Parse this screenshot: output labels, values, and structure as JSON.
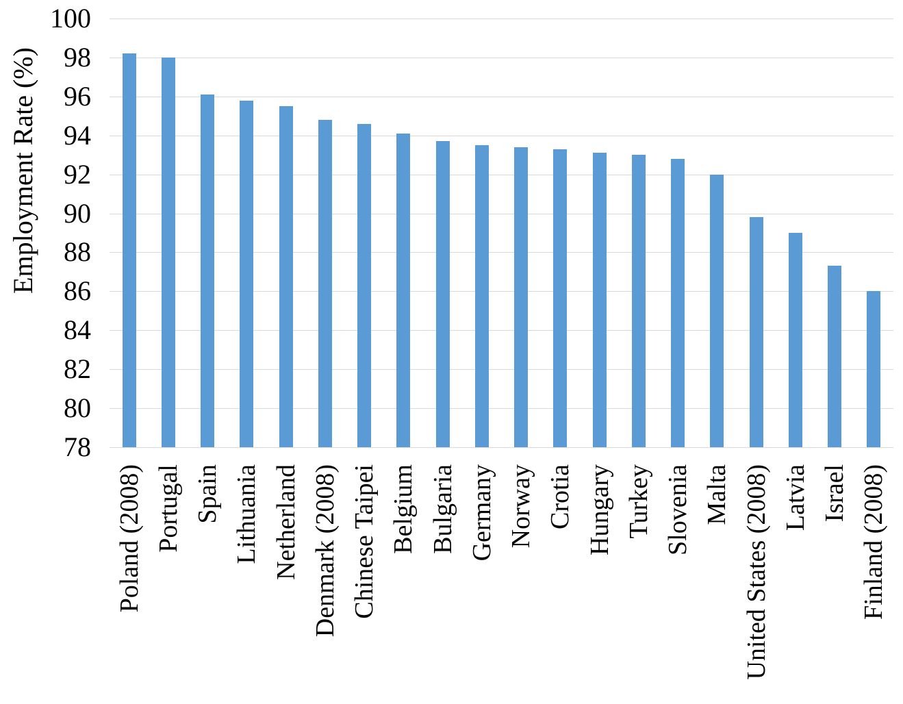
{
  "chart_data": {
    "type": "bar",
    "title": "",
    "xlabel": "",
    "ylabel": "Employment Rate (%)",
    "categories": [
      "Poland (2008)",
      "Portugal",
      "Spain",
      "Lithuania",
      "Netherland",
      "Denmark (2008)",
      "Chinese Taipei",
      "Belgium",
      "Bulgaria",
      "Germany",
      "Norway",
      "Crotia",
      "Hungary",
      "Turkey",
      "Slovenia",
      "Malta",
      "United States (2008)",
      "Latvia",
      "Israel",
      "Finland (2008)"
    ],
    "values": [
      98.2,
      98.0,
      96.1,
      95.8,
      95.5,
      94.8,
      94.6,
      94.1,
      93.7,
      93.5,
      93.4,
      93.3,
      93.1,
      93.0,
      92.8,
      92.0,
      89.8,
      89.0,
      87.3,
      86.0
    ],
    "ylim": [
      78,
      100
    ],
    "yticks": [
      78,
      80,
      82,
      84,
      86,
      88,
      90,
      92,
      94,
      96,
      98,
      100
    ],
    "grid": true,
    "legend": false,
    "bar_color": "#5B9BD5",
    "gridline_color": "#D9D9D9",
    "text_color": "#000000"
  }
}
